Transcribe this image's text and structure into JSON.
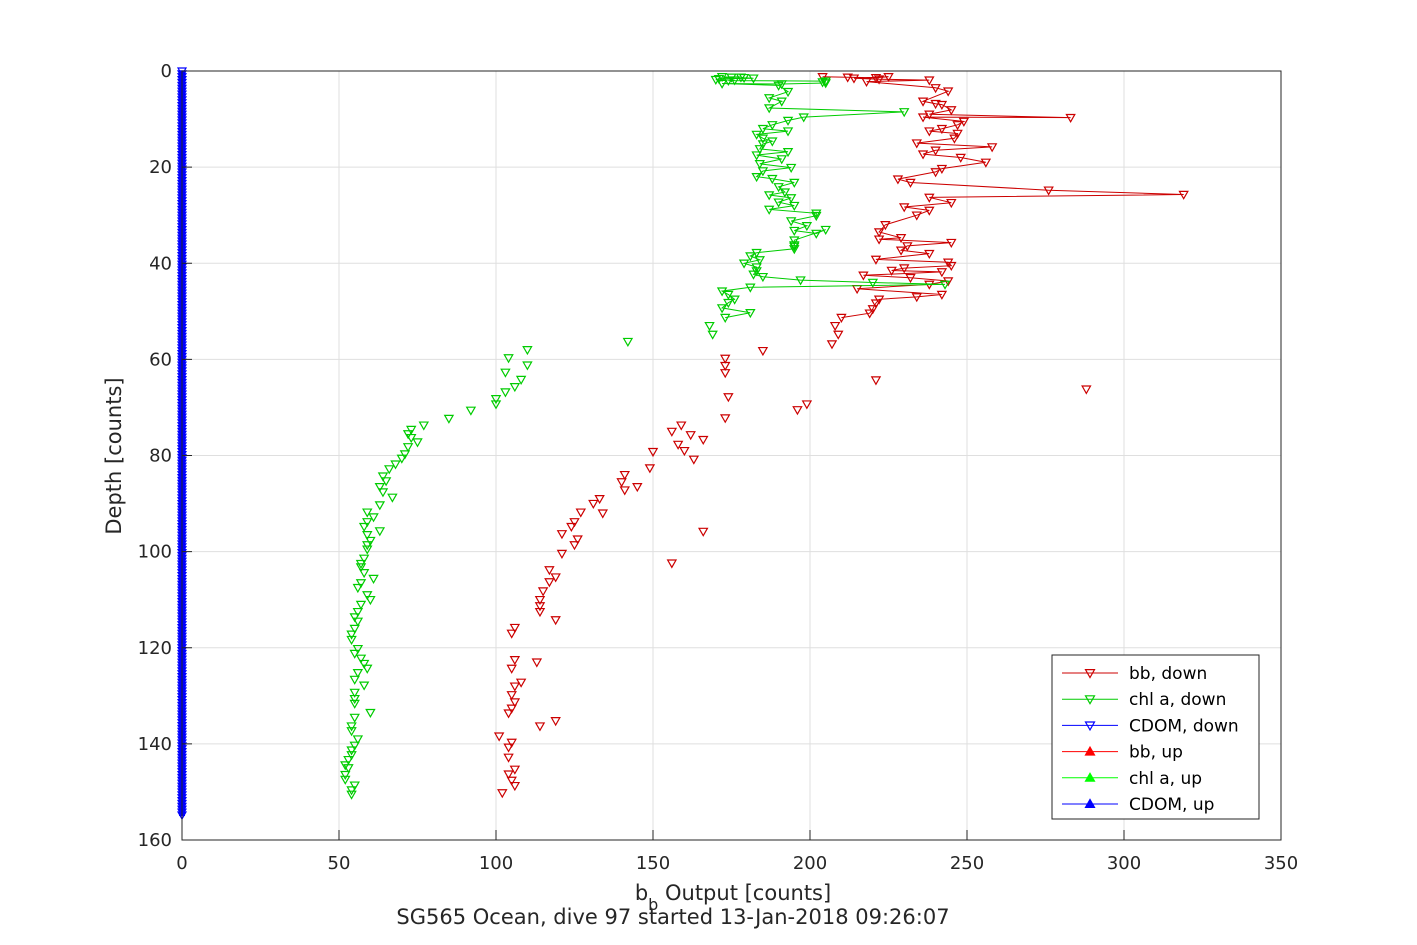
{
  "chart_data": {
    "type": "scatter",
    "title": "SG565 Ocean, dive 97 started 13-Jan-2018 09:26:07",
    "xlabel": {
      "base": "b",
      "sub": "b",
      "rest": " Output [counts]"
    },
    "ylabel": "Depth [counts]",
    "xlim": [
      0,
      350
    ],
    "ylim": [
      0,
      160
    ],
    "y_reversed": true,
    "xticks": [
      "0",
      "50",
      "100",
      "150",
      "200",
      "250",
      "300",
      "350"
    ],
    "yticks": [
      "0",
      "20",
      "40",
      "60",
      "80",
      "100",
      "120",
      "140",
      "160"
    ],
    "grid": true,
    "legend_position": "bottom-right",
    "legend": [
      {
        "label": "bb, down",
        "color": "#cc0000",
        "marker": "triangle-down"
      },
      {
        "label": "chl a, down",
        "color": "#00cc00",
        "marker": "triangle-down"
      },
      {
        "label": "CDOM, down",
        "color": "#0000ff",
        "marker": "triangle-down"
      },
      {
        "label": "bb, up",
        "color": "#ff0000",
        "marker": "triangle-up"
      },
      {
        "label": "chl a, up",
        "color": "#00ff00",
        "marker": "triangle-up"
      },
      {
        "label": "CDOM, up",
        "color": "#0000ff",
        "marker": "triangle-up"
      }
    ],
    "series": [
      {
        "name": "bb, down",
        "color": "#cc0000",
        "marker": "triangle-down",
        "connected_until_depth": 52,
        "points": [
          [
            204,
            1.2
          ],
          [
            212,
            1.3
          ],
          [
            221,
            1.4
          ],
          [
            225,
            1.2
          ],
          [
            214,
            1.5
          ],
          [
            222,
            1.7
          ],
          [
            238,
            1.9
          ],
          [
            218,
            2.2
          ],
          [
            240,
            3.5
          ],
          [
            244,
            4.2
          ],
          [
            236,
            6.3
          ],
          [
            240,
            6.8
          ],
          [
            242,
            7.0
          ],
          [
            245,
            8.1
          ],
          [
            238,
            9.0
          ],
          [
            283,
            9.7
          ],
          [
            236,
            9.6
          ],
          [
            249,
            10.5
          ],
          [
            247,
            11.2
          ],
          [
            242,
            12.0
          ],
          [
            238,
            12.5
          ],
          [
            247,
            13.0
          ],
          [
            246,
            14.0
          ],
          [
            234,
            15.0
          ],
          [
            258,
            15.8
          ],
          [
            240,
            16.5
          ],
          [
            236,
            17.3
          ],
          [
            248,
            18.0
          ],
          [
            256,
            19.0
          ],
          [
            242,
            20.3
          ],
          [
            240,
            21.0
          ],
          [
            228,
            22.5
          ],
          [
            232,
            23.2
          ],
          [
            276,
            24.8
          ],
          [
            319,
            25.7
          ],
          [
            238,
            26.3
          ],
          [
            245,
            27.4
          ],
          [
            230,
            28.3
          ],
          [
            238,
            29.0
          ],
          [
            234,
            30.0
          ],
          [
            224,
            32.0
          ],
          [
            222,
            33.5
          ],
          [
            229,
            34.7
          ],
          [
            222,
            35.0
          ],
          [
            245,
            35.7
          ],
          [
            231,
            36.4
          ],
          [
            229,
            37.3
          ],
          [
            238,
            38.0
          ],
          [
            221,
            39.2
          ],
          [
            244,
            39.8
          ],
          [
            245,
            40.5
          ],
          [
            230,
            41.0
          ],
          [
            226,
            41.5
          ],
          [
            242,
            41.8
          ],
          [
            217,
            42.5
          ],
          [
            232,
            43.0
          ],
          [
            244,
            43.7
          ],
          [
            238,
            44.4
          ],
          [
            215,
            45.3
          ],
          [
            242,
            46.5
          ],
          [
            234,
            47.0
          ],
          [
            222,
            47.5
          ],
          [
            221,
            48.3
          ],
          [
            220,
            49.5
          ],
          [
            219,
            50.4
          ],
          [
            210,
            51.3
          ]
        ],
        "scattered_points": [
          [
            208,
            53.0
          ],
          [
            209,
            54.8
          ],
          [
            207,
            56.8
          ],
          [
            185,
            58.2
          ],
          [
            173,
            59.8
          ],
          [
            173,
            61.3
          ],
          [
            173,
            62.8
          ],
          [
            221,
            64.3
          ],
          [
            288,
            66.2
          ],
          [
            174,
            67.8
          ],
          [
            199,
            69.3
          ],
          [
            196,
            70.5
          ],
          [
            173,
            72.2
          ],
          [
            159,
            73.7
          ],
          [
            156,
            75.0
          ],
          [
            162,
            75.7
          ],
          [
            166,
            76.7
          ],
          [
            158,
            77.7
          ],
          [
            160,
            79.0
          ],
          [
            163,
            80.8
          ],
          [
            150,
            79.2
          ],
          [
            149,
            82.6
          ],
          [
            141,
            84.0
          ],
          [
            140,
            85.5
          ],
          [
            141,
            87.2
          ],
          [
            145,
            86.5
          ],
          [
            133,
            89.0
          ],
          [
            131,
            90.0
          ],
          [
            134,
            92.0
          ],
          [
            127,
            91.8
          ],
          [
            125,
            93.8
          ],
          [
            124,
            94.8
          ],
          [
            166,
            95.8
          ],
          [
            121,
            96.3
          ],
          [
            126,
            97.4
          ],
          [
            125,
            98.6
          ],
          [
            121,
            100.4
          ],
          [
            156,
            102.4
          ],
          [
            117,
            103.8
          ],
          [
            119,
            105.3
          ],
          [
            117,
            106.3
          ],
          [
            115,
            108.2
          ],
          [
            114,
            110.0
          ],
          [
            114,
            111.3
          ],
          [
            114,
            112.5
          ],
          [
            119,
            114.2
          ],
          [
            106,
            115.8
          ],
          [
            105,
            117.0
          ],
          [
            106,
            122.5
          ],
          [
            105,
            124.3
          ],
          [
            113,
            123.0
          ],
          [
            106,
            128.0
          ],
          [
            108,
            127.2
          ],
          [
            105,
            129.8
          ],
          [
            106,
            131.3
          ],
          [
            105,
            132.6
          ],
          [
            104,
            133.6
          ],
          [
            119,
            135.2
          ],
          [
            114,
            136.3
          ],
          [
            101,
            138.4
          ],
          [
            105,
            139.7
          ],
          [
            104,
            140.7
          ],
          [
            104,
            142.8
          ],
          [
            106,
            145.3
          ],
          [
            104,
            146.3
          ],
          [
            105,
            147.6
          ],
          [
            106,
            148.7
          ],
          [
            102,
            150.2
          ]
        ]
      },
      {
        "name": "chl a, down",
        "color": "#00cc00",
        "marker": "triangle-down",
        "connected_until_depth": 50,
        "points": [
          [
            172,
            1.2
          ],
          [
            175,
            1.3
          ],
          [
            178,
            1.3
          ],
          [
            179,
            1.4
          ],
          [
            182,
            1.5
          ],
          [
            171,
            1.6
          ],
          [
            170,
            1.8
          ],
          [
            176,
            1.9
          ],
          [
            174,
            2.0
          ],
          [
            205,
            2.1
          ],
          [
            204,
            2.3
          ],
          [
            205,
            2.5
          ],
          [
            191,
            2.7
          ],
          [
            172,
            2.6
          ],
          [
            190,
            3.0
          ],
          [
            193,
            4.3
          ],
          [
            187,
            5.6
          ],
          [
            191,
            6.3
          ],
          [
            187,
            7.7
          ],
          [
            230,
            8.5
          ],
          [
            198,
            9.6
          ],
          [
            193,
            10.3
          ],
          [
            188,
            11.2
          ],
          [
            185,
            12.0
          ],
          [
            193,
            12.5
          ],
          [
            183,
            13.2
          ],
          [
            185,
            14.0
          ],
          [
            188,
            14.6
          ],
          [
            185,
            15.2
          ],
          [
            184,
            16.2
          ],
          [
            193,
            16.8
          ],
          [
            183,
            17.5
          ],
          [
            191,
            18.3
          ],
          [
            184,
            19.3
          ],
          [
            194,
            20.1
          ],
          [
            185,
            20.8
          ],
          [
            183,
            22.0
          ],
          [
            188,
            22.4
          ],
          [
            195,
            23.2
          ],
          [
            190,
            24.1
          ],
          [
            192,
            25.2
          ],
          [
            187,
            25.8
          ],
          [
            194,
            26.4
          ],
          [
            190,
            27.3
          ],
          [
            195,
            28.0
          ],
          [
            187,
            28.8
          ],
          [
            202,
            29.6
          ],
          [
            202,
            30.1
          ],
          [
            194,
            31.2
          ],
          [
            199,
            32.2
          ],
          [
            195,
            33.2
          ],
          [
            202,
            33.8
          ],
          [
            205,
            33.0
          ],
          [
            195,
            35.2
          ],
          [
            195,
            36.2
          ],
          [
            195,
            36.5
          ],
          [
            195,
            37.0
          ],
          [
            183,
            37.8
          ],
          [
            181,
            38.5
          ],
          [
            184,
            39.3
          ],
          [
            179,
            40.0
          ],
          [
            183,
            40.8
          ],
          [
            183,
            41.6
          ],
          [
            182,
            42.3
          ],
          [
            185,
            42.8
          ],
          [
            197,
            43.5
          ],
          [
            220,
            44.0
          ],
          [
            243,
            44.4
          ],
          [
            181,
            45.0
          ],
          [
            172,
            45.8
          ],
          [
            174,
            46.5
          ],
          [
            176,
            47.5
          ],
          [
            174,
            48.2
          ],
          [
            172,
            49.3
          ],
          [
            181,
            50.3
          ],
          [
            173,
            51.3
          ]
        ],
        "scattered_points": [
          [
            168,
            53.0
          ],
          [
            169,
            54.8
          ],
          [
            142,
            56.3
          ],
          [
            110,
            58.0
          ],
          [
            104,
            59.7
          ],
          [
            110,
            61.2
          ],
          [
            103,
            62.7
          ],
          [
            108,
            64.2
          ],
          [
            106,
            65.7
          ],
          [
            103,
            66.8
          ],
          [
            100,
            68.2
          ],
          [
            100,
            69.3
          ],
          [
            92,
            70.6
          ],
          [
            85,
            72.3
          ],
          [
            77,
            73.7
          ],
          [
            73,
            74.6
          ],
          [
            72,
            75.5
          ],
          [
            73,
            76.3
          ],
          [
            75,
            77.2
          ],
          [
            72,
            78.2
          ],
          [
            71,
            79.7
          ],
          [
            70,
            80.6
          ],
          [
            68,
            81.8
          ],
          [
            66,
            82.8
          ],
          [
            64,
            84.3
          ],
          [
            65,
            85.3
          ],
          [
            63,
            86.5
          ],
          [
            64,
            87.6
          ],
          [
            67,
            88.7
          ],
          [
            63,
            90.3
          ],
          [
            59,
            91.8
          ],
          [
            61,
            92.8
          ],
          [
            59,
            93.8
          ],
          [
            58,
            94.8
          ],
          [
            63,
            95.7
          ],
          [
            59,
            96.5
          ],
          [
            60,
            97.7
          ],
          [
            59,
            98.6
          ],
          [
            59,
            99.5
          ],
          [
            58,
            101.4
          ],
          [
            57,
            102.5
          ],
          [
            57,
            103.2
          ],
          [
            58,
            104.4
          ],
          [
            61,
            105.6
          ],
          [
            57,
            106.5
          ],
          [
            56,
            107.5
          ],
          [
            59,
            109.0
          ],
          [
            60,
            110.0
          ],
          [
            57,
            111.0
          ],
          [
            56,
            112.5
          ],
          [
            55,
            113.6
          ],
          [
            56,
            114.5
          ],
          [
            55,
            116.0
          ],
          [
            54,
            117.2
          ],
          [
            54,
            118.3
          ],
          [
            56,
            120.2
          ],
          [
            55,
            121.2
          ],
          [
            57,
            122.2
          ],
          [
            58,
            123.3
          ],
          [
            59,
            124.3
          ],
          [
            56,
            125.2
          ],
          [
            55,
            126.6
          ],
          [
            58,
            127.8
          ],
          [
            55,
            129.3
          ],
          [
            55,
            130.6
          ],
          [
            55,
            131.6
          ],
          [
            60,
            133.5
          ],
          [
            55,
            134.5
          ],
          [
            54,
            136.3
          ],
          [
            54,
            137.3
          ],
          [
            56,
            139.0
          ],
          [
            55,
            140.3
          ],
          [
            54,
            141.3
          ],
          [
            54,
            142.3
          ],
          [
            53,
            143.3
          ],
          [
            52,
            144.4
          ],
          [
            53,
            145.0
          ],
          [
            52,
            146.4
          ],
          [
            52,
            147.4
          ],
          [
            55,
            148.6
          ],
          [
            54,
            149.6
          ],
          [
            54,
            150.5
          ]
        ]
      },
      {
        "name": "CDOM, down",
        "color": "#0000ff",
        "marker": "triangle-down",
        "constant_x": 0,
        "depth_range": [
          0,
          155
        ],
        "depth_step": 0.6
      }
    ]
  }
}
